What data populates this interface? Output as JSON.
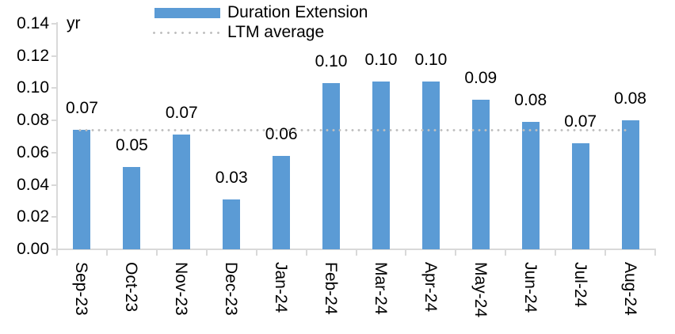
{
  "unit_label": "yr",
  "legend": {
    "items": [
      {
        "label": "Duration Extension",
        "type": "bar-swatch",
        "color": "#5b9bd5"
      },
      {
        "label": "LTM average",
        "type": "dotted-line",
        "color": "#bfbfbf"
      }
    ]
  },
  "chart_data": {
    "type": "bar",
    "title": "",
    "xlabel": "",
    "ylabel": "yr",
    "categories": [
      "Sep-23",
      "Oct-23",
      "Nov-23",
      "Dec-23",
      "Jan-24",
      "Feb-24",
      "Mar-24",
      "Apr-24",
      "May-24",
      "Jun-24",
      "Jul-24",
      "Aug-24"
    ],
    "series": [
      {
        "name": "Duration Extension",
        "color": "#5b9bd5",
        "values": [
          0.074,
          0.051,
          0.071,
          0.031,
          0.058,
          0.103,
          0.104,
          0.104,
          0.093,
          0.079,
          0.066,
          0.08
        ],
        "labels": [
          "0.07",
          "0.05",
          "0.07",
          "0.03",
          "0.06",
          "0.10",
          "0.10",
          "0.10",
          "0.09",
          "0.08",
          "0.07",
          "0.08"
        ]
      }
    ],
    "reference_line": {
      "name": "LTM average",
      "value": 0.074,
      "style": "dotted",
      "color": "#bfbfbf"
    },
    "ylim": [
      0,
      0.14
    ],
    "ytick_values": [
      0,
      0.02,
      0.04,
      0.06,
      0.08,
      0.1,
      0.12,
      0.14
    ],
    "ytick_labels": [
      "0.00",
      "0.02",
      "0.04",
      "0.06",
      "0.08",
      "0.10",
      "0.12",
      "0.14"
    ],
    "grid": false,
    "legend_position": "top-center",
    "axis_color": "#d9d9d9",
    "text_color": "#000000"
  }
}
